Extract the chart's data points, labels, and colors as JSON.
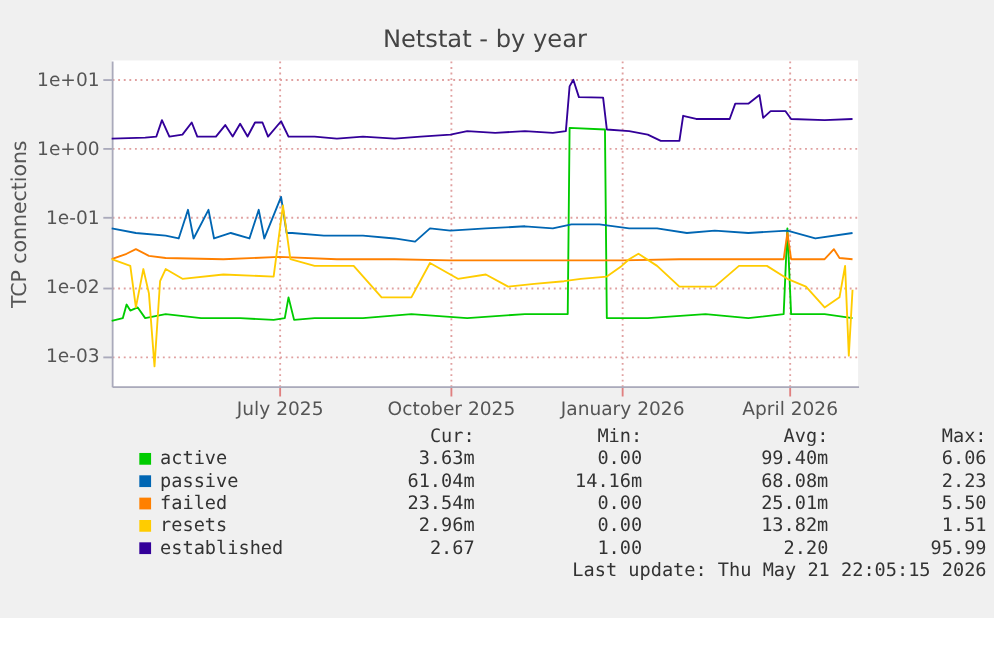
{
  "chart_data": {
    "type": "line",
    "title": "Netstat - by year",
    "ylabel": "TCP connections",
    "log": true,
    "grid": true,
    "legend": "bottom",
    "marker": "none",
    "line_style": "solid",
    "xlim": [
      "2025-04-02",
      "2026-05-08"
    ],
    "xticks": [
      {
        "value": "2025-07-01",
        "label": "July 2025"
      },
      {
        "value": "2025-10-01",
        "label": "October 2025"
      },
      {
        "value": "2026-01-01",
        "label": "January 2026"
      },
      {
        "value": "2026-04-01",
        "label": "April 2026"
      }
    ],
    "ylim": [
      0.00036,
      19
    ],
    "yticks": [
      {
        "value": 0.001,
        "label": "1e-03"
      },
      {
        "value": 0.01,
        "label": "1e-02"
      },
      {
        "value": 0.1,
        "label": "1e-01"
      },
      {
        "value": 1,
        "label": "1e+00"
      },
      {
        "value": 10,
        "label": "1e+01"
      }
    ],
    "series": [
      {
        "name": "active",
        "color": "#00cc00",
        "x": [
          "2025-04-02",
          "2025-04-08",
          "2025-04-10",
          "2025-04-12",
          "2025-04-16",
          "2025-04-20",
          "2025-05-01",
          "2025-05-20",
          "2025-06-10",
          "2025-06-28",
          "2025-07-04",
          "2025-07-06",
          "2025-07-09",
          "2025-07-20",
          "2025-08-15",
          "2025-09-10",
          "2025-10-10",
          "2025-11-10",
          "2025-12-03",
          "2025-12-04",
          "2025-12-23",
          "2025-12-24",
          "2026-01-15",
          "2026-02-15",
          "2026-03-10",
          "2026-03-29",
          "2026-03-31",
          "2026-04-02",
          "2026-04-20",
          "2026-05-05"
        ],
        "values": [
          0.0032,
          0.0035,
          0.0055,
          0.0045,
          0.005,
          0.0035,
          0.004,
          0.0035,
          0.0035,
          0.0033,
          0.0035,
          0.007,
          0.0033,
          0.0035,
          0.0035,
          0.004,
          0.0035,
          0.004,
          0.004,
          2.0,
          1.9,
          0.0035,
          0.0035,
          0.004,
          0.0035,
          0.004,
          0.07,
          0.004,
          0.004,
          0.0035
        ]
      },
      {
        "name": "passive",
        "color": "#0066b3",
        "x": [
          "2025-04-02",
          "2025-04-15",
          "2025-05-01",
          "2025-05-08",
          "2025-05-13",
          "2025-05-16",
          "2025-05-24",
          "2025-05-27",
          "2025-06-05",
          "2025-06-15",
          "2025-06-20",
          "2025-06-23",
          "2025-07-02",
          "2025-07-05",
          "2025-07-08",
          "2025-07-25",
          "2025-08-15",
          "2025-09-01",
          "2025-09-12",
          "2025-09-20",
          "2025-10-01",
          "2025-10-20",
          "2025-11-10",
          "2025-11-25",
          "2025-12-05",
          "2025-12-20",
          "2026-01-05",
          "2026-01-20",
          "2026-02-05",
          "2026-02-20",
          "2026-03-10",
          "2026-03-31",
          "2026-04-15",
          "2026-05-05"
        ],
        "values": [
          0.07,
          0.06,
          0.055,
          0.05,
          0.13,
          0.05,
          0.13,
          0.05,
          0.06,
          0.05,
          0.13,
          0.05,
          0.2,
          0.06,
          0.06,
          0.055,
          0.055,
          0.05,
          0.045,
          0.07,
          0.065,
          0.07,
          0.075,
          0.07,
          0.08,
          0.08,
          0.07,
          0.07,
          0.06,
          0.065,
          0.06,
          0.065,
          0.05,
          0.06
        ]
      },
      {
        "name": "failed",
        "color": "#ff8000",
        "x": [
          "2025-04-02",
          "2025-04-10",
          "2025-04-15",
          "2025-04-22",
          "2025-05-01",
          "2025-06-01",
          "2025-07-01",
          "2025-08-01",
          "2025-09-01",
          "2025-10-01",
          "2025-11-01",
          "2025-12-01",
          "2026-01-01",
          "2026-02-01",
          "2026-03-01",
          "2026-03-29",
          "2026-03-31",
          "2026-04-02",
          "2026-04-20",
          "2026-04-25",
          "2026-04-28",
          "2026-05-05"
        ],
        "values": [
          0.025,
          0.03,
          0.035,
          0.028,
          0.026,
          0.025,
          0.027,
          0.025,
          0.025,
          0.024,
          0.024,
          0.024,
          0.024,
          0.025,
          0.025,
          0.025,
          0.06,
          0.025,
          0.025,
          0.035,
          0.026,
          0.025
        ]
      },
      {
        "name": "resets",
        "color": "#ffcc00",
        "x": [
          "2025-04-02",
          "2025-04-12",
          "2025-04-15",
          "2025-04-19",
          "2025-04-22",
          "2025-04-25",
          "2025-04-28",
          "2025-05-01",
          "2025-05-10",
          "2025-06-01",
          "2025-06-28",
          "2025-07-03",
          "2025-07-07",
          "2025-07-20",
          "2025-08-10",
          "2025-08-25",
          "2025-09-10",
          "2025-09-20",
          "2025-10-05",
          "2025-10-20",
          "2025-11-01",
          "2025-11-15",
          "2025-12-01",
          "2025-12-10",
          "2025-12-24",
          "2026-01-01",
          "2026-01-05",
          "2026-01-10",
          "2026-01-20",
          "2026-02-01",
          "2026-02-20",
          "2026-03-05",
          "2026-03-20",
          "2026-03-31",
          "2026-04-10",
          "2026-04-20",
          "2026-04-28",
          "2026-05-01",
          "2026-05-03",
          "2026-05-05"
        ],
        "values": [
          0.025,
          0.02,
          0.005,
          0.018,
          0.008,
          0.0007,
          0.012,
          0.018,
          0.013,
          0.015,
          0.014,
          0.15,
          0.025,
          0.02,
          0.02,
          0.007,
          0.007,
          0.022,
          0.013,
          0.015,
          0.01,
          0.011,
          0.012,
          0.013,
          0.014,
          0.02,
          0.025,
          0.03,
          0.02,
          0.01,
          0.01,
          0.02,
          0.02,
          0.013,
          0.01,
          0.005,
          0.007,
          0.02,
          0.001,
          0.009
        ]
      },
      {
        "name": "established",
        "color": "#330099",
        "x": [
          "2025-04-02",
          "2025-04-20",
          "2025-04-26",
          "2025-04-29",
          "2025-05-03",
          "2025-05-10",
          "2025-05-15",
          "2025-05-18",
          "2025-05-28",
          "2025-06-02",
          "2025-06-06",
          "2025-06-10",
          "2025-06-14",
          "2025-06-18",
          "2025-06-22",
          "2025-06-25",
          "2025-07-02",
          "2025-07-06",
          "2025-07-20",
          "2025-08-01",
          "2025-08-15",
          "2025-09-01",
          "2025-09-15",
          "2025-10-01",
          "2025-10-10",
          "2025-10-25",
          "2025-11-10",
          "2025-11-25",
          "2025-12-02",
          "2025-12-04",
          "2025-12-06",
          "2025-12-09",
          "2025-12-22",
          "2025-12-24",
          "2026-01-05",
          "2026-01-15",
          "2026-01-22",
          "2026-02-01",
          "2026-02-03",
          "2026-02-10",
          "2026-02-28",
          "2026-03-03",
          "2026-03-10",
          "2026-03-16",
          "2026-03-18",
          "2026-03-22",
          "2026-03-30",
          "2026-04-02",
          "2026-04-20",
          "2026-05-05"
        ],
        "values": [
          1.4,
          1.45,
          1.5,
          2.6,
          1.5,
          1.6,
          2.4,
          1.5,
          1.5,
          2.2,
          1.5,
          2.3,
          1.5,
          2.4,
          2.4,
          1.5,
          2.5,
          1.5,
          1.5,
          1.4,
          1.5,
          1.4,
          1.5,
          1.6,
          1.8,
          1.7,
          1.8,
          1.7,
          1.8,
          8,
          10,
          5.6,
          5.5,
          1.9,
          1.8,
          1.6,
          1.3,
          1.3,
          3.0,
          2.7,
          2.7,
          4.5,
          4.5,
          6,
          2.8,
          3.5,
          3.5,
          2.7,
          2.6,
          2.7
        ]
      }
    ],
    "annotations": [
      "Cur:",
      "Min:",
      "Avg:",
      "Max:",
      "3.63m",
      "0.00",
      "99.40m",
      "6.06",
      "61.04m",
      "14.16m",
      "68.08m",
      "2.23",
      "23.54m",
      "0.00",
      "25.01m",
      "5.50",
      "2.96m",
      "0.00",
      "13.82m",
      "1.51",
      "2.67",
      "1.00",
      "2.20",
      "95.99",
      "Last update: Thu May 21 22:05:15 2026"
    ]
  }
}
